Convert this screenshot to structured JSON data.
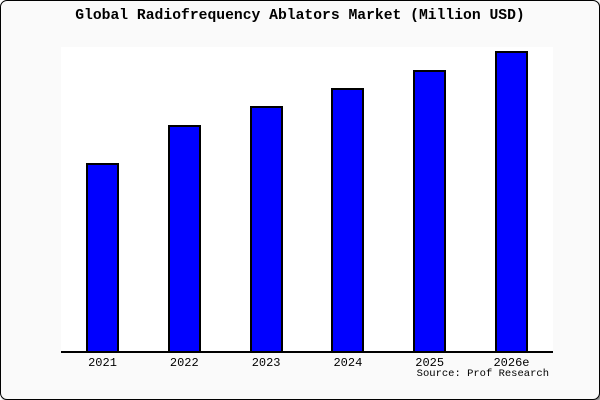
{
  "chart_data": {
    "type": "bar",
    "title": "Global Radiofrequency Ablators Market (Million USD)",
    "categories": [
      "2021",
      "2022",
      "2023",
      "2024",
      "2025",
      "2026e"
    ],
    "values": [
      62.7,
      75.3,
      81.7,
      87.7,
      93.7,
      100
    ],
    "xlabel": "",
    "ylabel": "",
    "ylim": [
      0,
      101.3
    ],
    "y_axis_ticks_visible": false,
    "grid": false,
    "legend": false,
    "bar_color": "#0000ff",
    "bar_edge_color": "#000000",
    "plot_background": "#ffffff",
    "figure_background": "#fafafa",
    "source_note": "Source: Prof Research"
  }
}
